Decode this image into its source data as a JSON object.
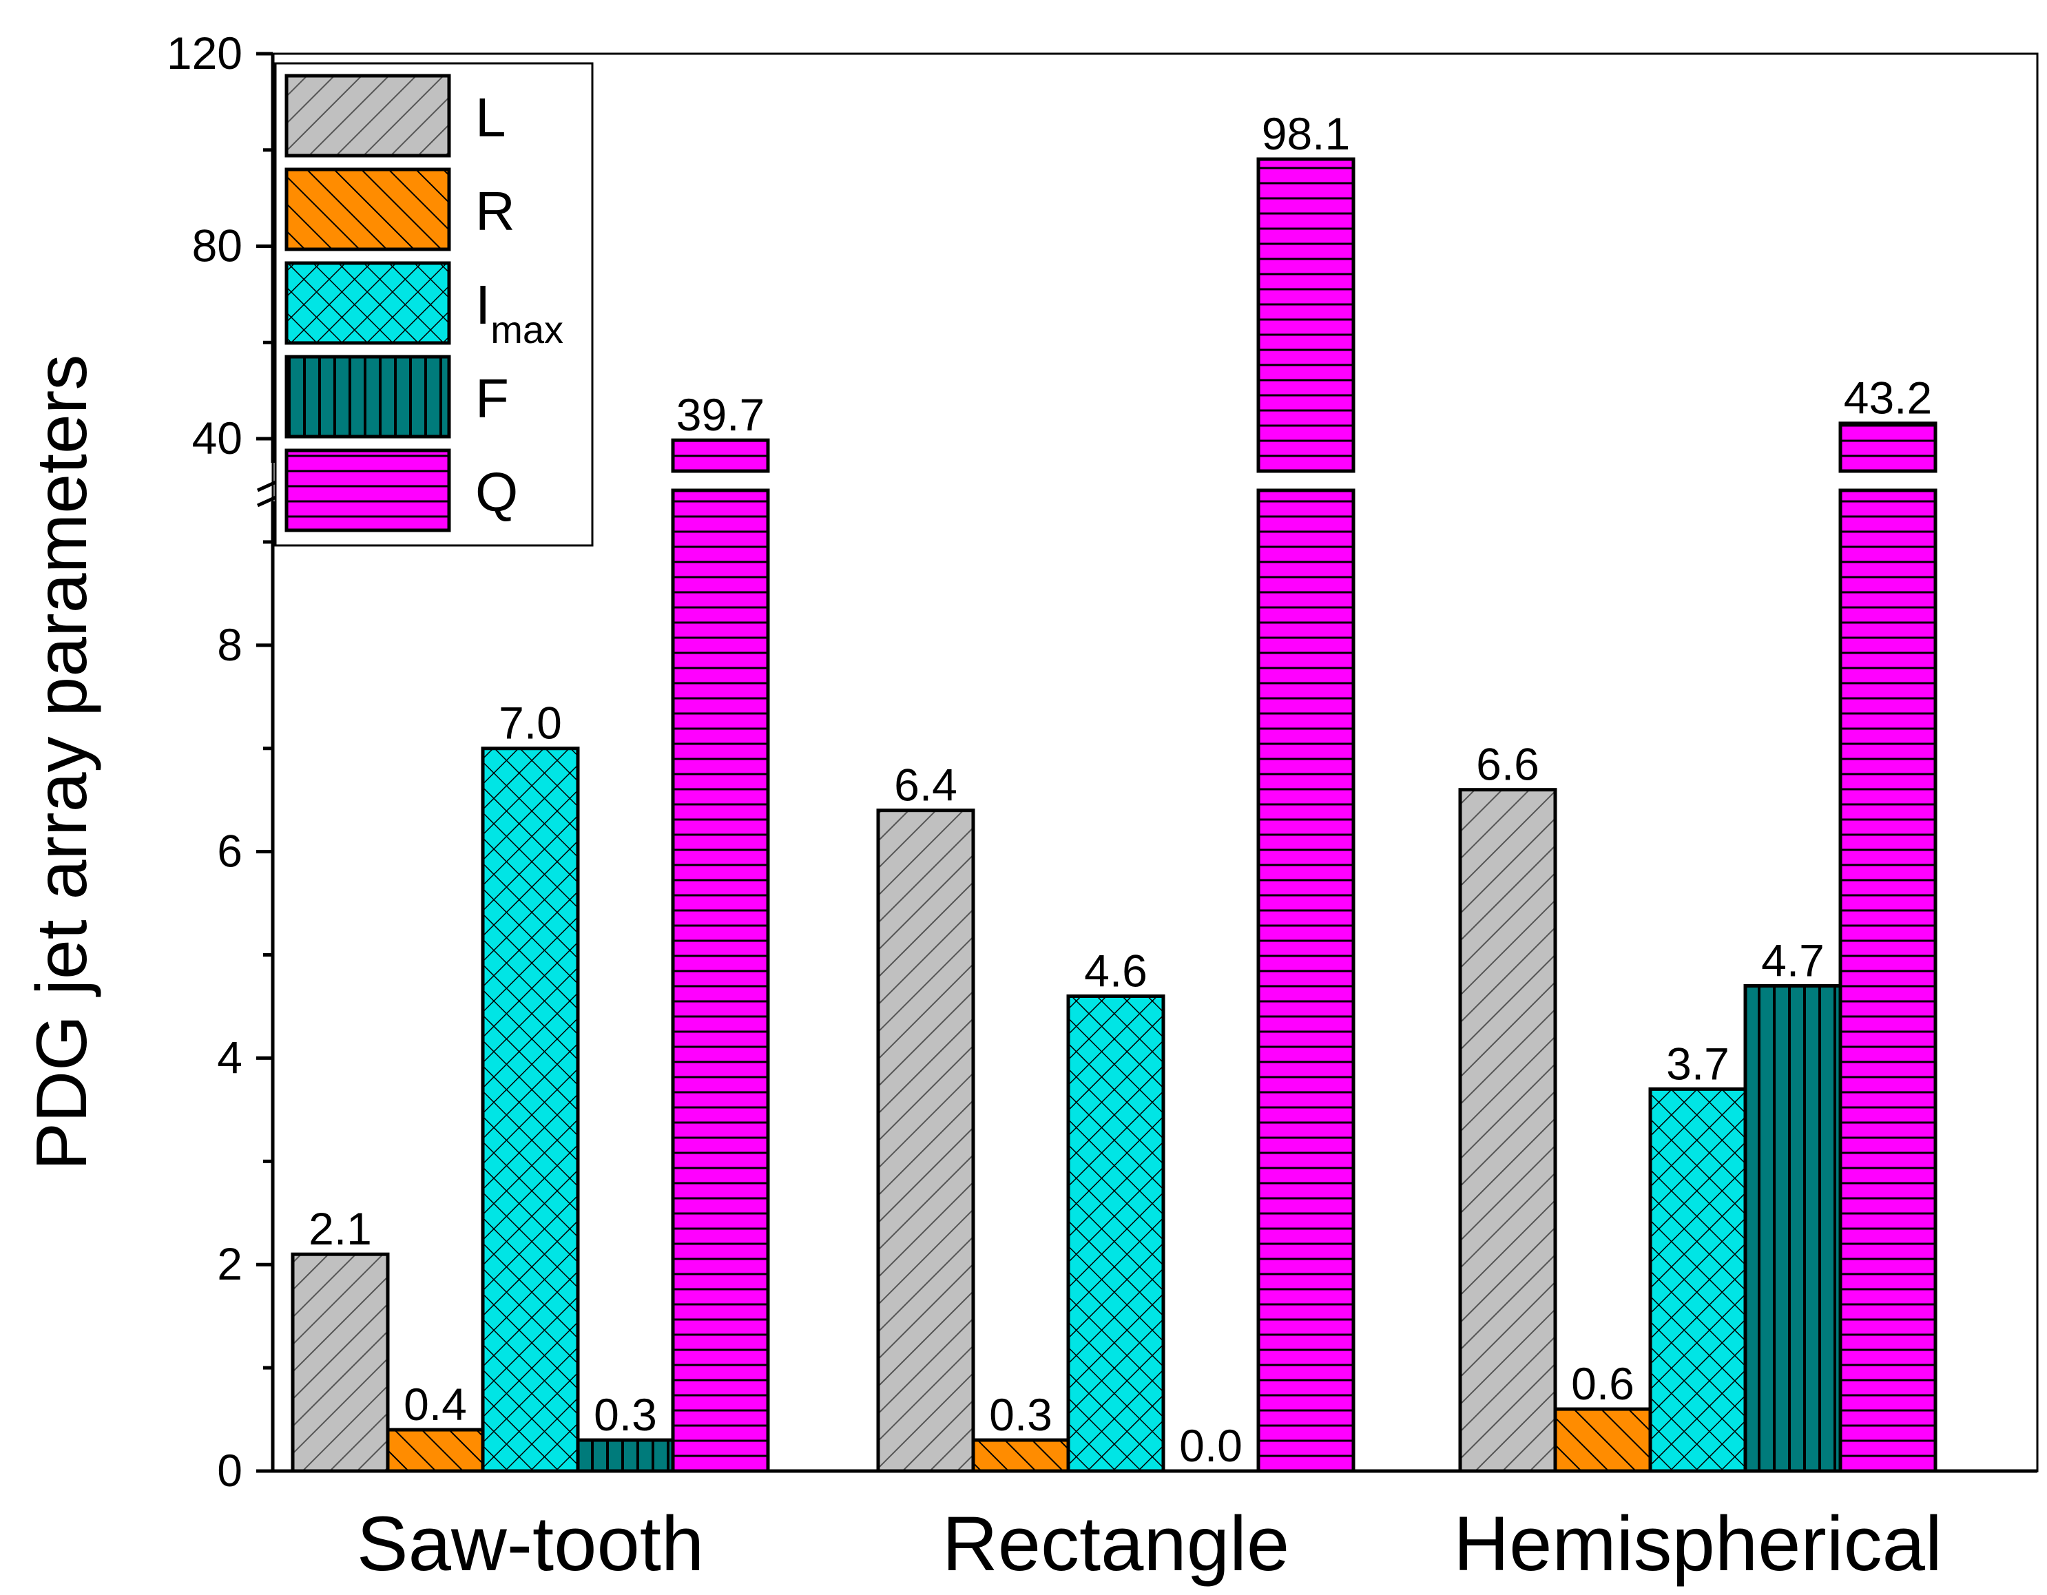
{
  "chart_data": {
    "type": "bar",
    "ylabel": "PDG jet array parameters",
    "xlabel": "",
    "categories": [
      "Saw-tooth",
      "Rectangle",
      "Hemispherical"
    ],
    "series": [
      {
        "name": "L",
        "values": [
          2.1,
          6.4,
          6.6
        ],
        "color": "#c0c0c0",
        "pattern": "diagonal-right"
      },
      {
        "name": "R",
        "values": [
          0.4,
          0.3,
          0.6
        ],
        "color": "#ff8c00",
        "pattern": "diagonal-left"
      },
      {
        "name": "I",
        "subscript": "max",
        "values": [
          7.0,
          4.6,
          3.7
        ],
        "color": "#00e5e5",
        "pattern": "crosshatch"
      },
      {
        "name": "F",
        "values": [
          0.3,
          0.0,
          4.7
        ],
        "color": "#007b7b",
        "pattern": "vertical"
      },
      {
        "name": "Q",
        "values": [
          39.7,
          98.1,
          43.2
        ],
        "color": "#ff00ff",
        "pattern": "horizontal"
      }
    ],
    "value_labels": [
      [
        "2.1",
        "6.4",
        "6.6"
      ],
      [
        "0.4",
        "0.3",
        "0.6"
      ],
      [
        "7.0",
        "4.6",
        "3.7"
      ],
      [
        "0.3",
        "0.0",
        "4.7"
      ],
      [
        "39.7",
        "98.1",
        "43.2"
      ]
    ],
    "axis_break": {
      "lower_range": [
        0,
        9.5
      ],
      "upper_range": [
        35,
        120
      ]
    },
    "yticks_lower": [
      0,
      2,
      4,
      6,
      8
    ],
    "yticks_upper": [
      40,
      80,
      120
    ],
    "ytick_labels_lower": [
      "0",
      "2",
      "4",
      "6",
      "8"
    ],
    "ytick_labels_upper": [
      "40",
      "80",
      "120"
    ],
    "legend_position": "top-left",
    "grid": false
  }
}
